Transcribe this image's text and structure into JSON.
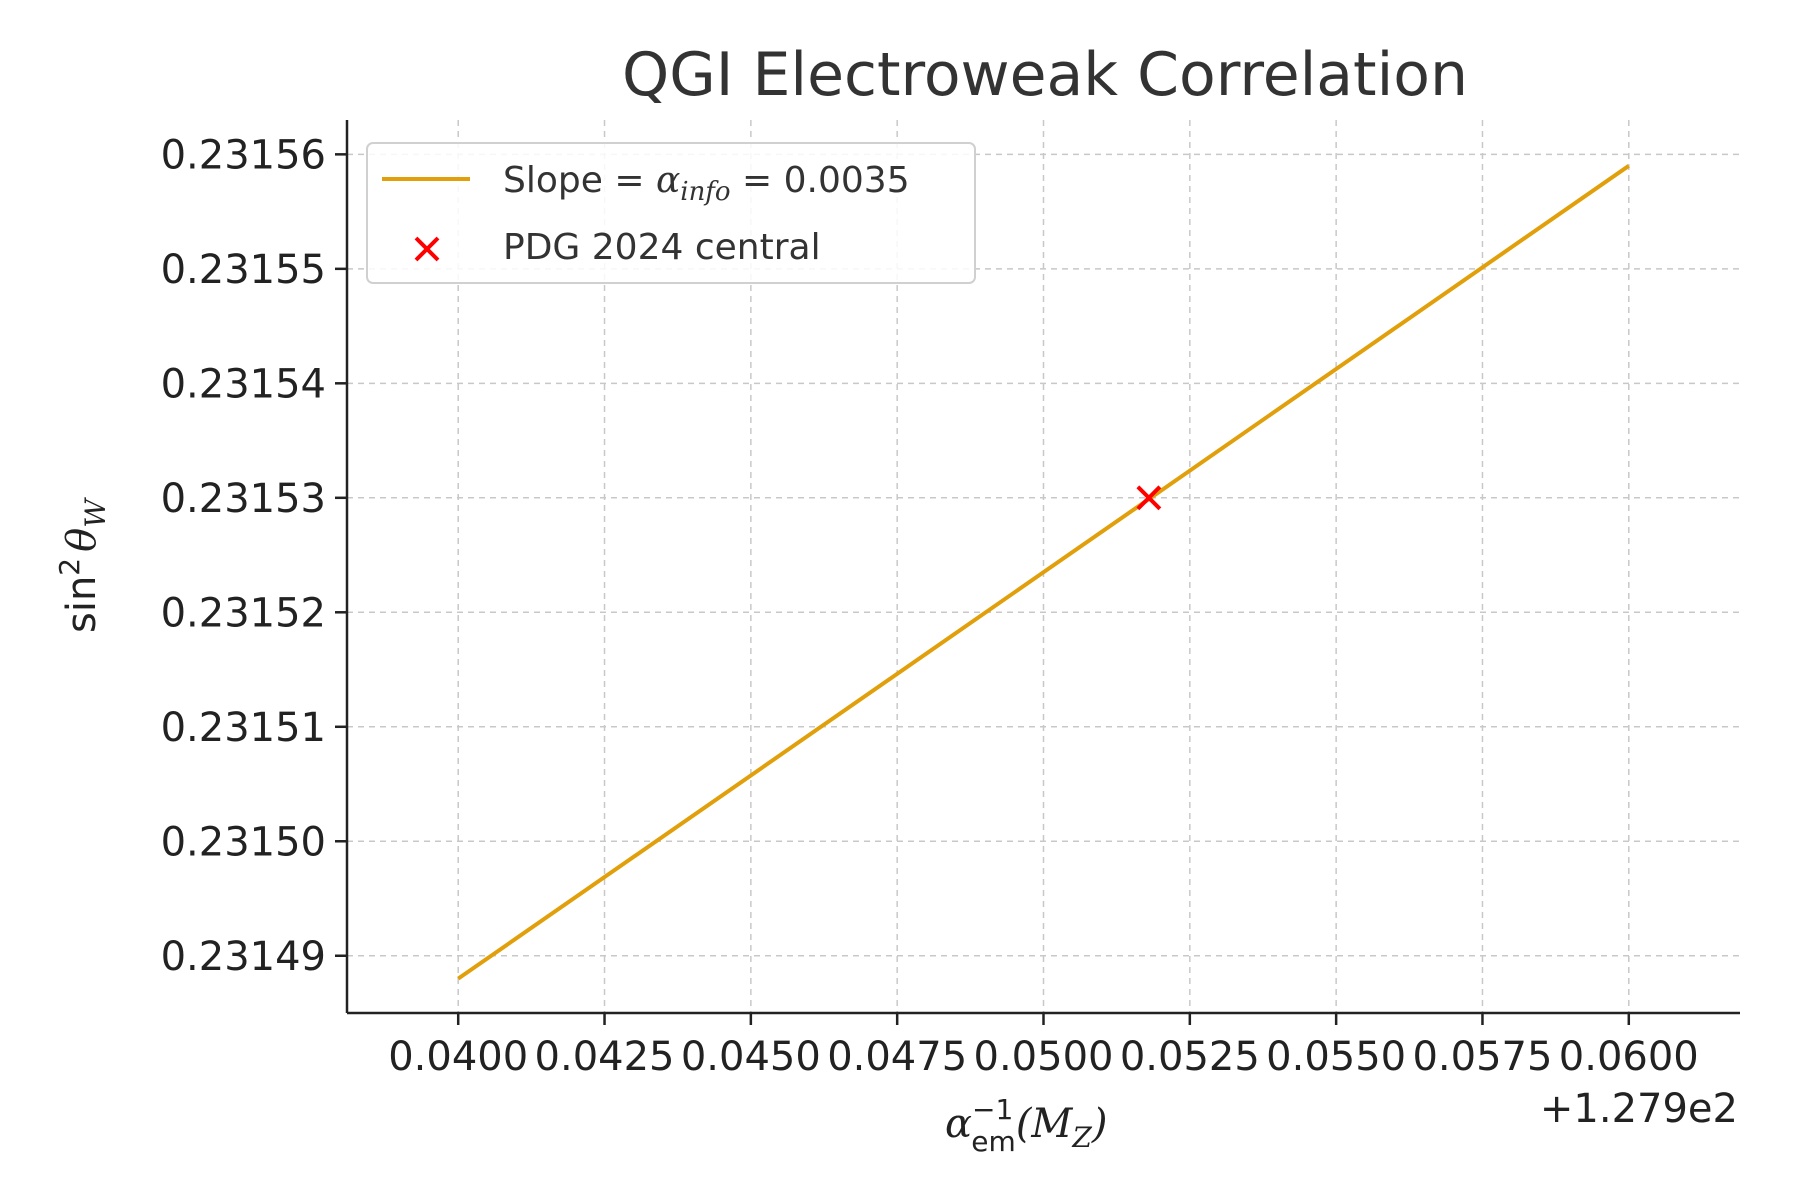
{
  "chart_data": {
    "type": "line",
    "title": "QGI Electroweak Correlation",
    "xlabel": "α_em^{-1}(M_Z)",
    "ylabel": "sin^2 θ_W",
    "x_offset_label": "+1.279e2",
    "xlim": [
      0.0381,
      0.0619
    ],
    "ylim": [
      0.231485,
      0.231563
    ],
    "x_ticks": [
      0.04,
      0.0425,
      0.045,
      0.0475,
      0.05,
      0.0525,
      0.055,
      0.0575,
      0.06
    ],
    "x_tick_labels": [
      "0.0400",
      "0.0425",
      "0.0450",
      "0.0475",
      "0.0500",
      "0.0525",
      "0.0550",
      "0.0575",
      "0.0600"
    ],
    "y_ticks": [
      0.23149,
      0.2315,
      0.23151,
      0.23152,
      0.23153,
      0.23154,
      0.23155,
      0.23156
    ],
    "y_tick_labels": [
      "0.23149",
      "0.23150",
      "0.23151",
      "0.23152",
      "0.23153",
      "0.23154",
      "0.23155",
      "0.23156"
    ],
    "grid": true,
    "legend_position": "top-left",
    "series": [
      {
        "name": "Slope = α_info = 0.0035",
        "kind": "line",
        "color": "#E1A00B",
        "x": [
          0.04,
          0.06
        ],
        "y": [
          0.231488,
          0.231559
        ]
      },
      {
        "name": "PDG 2024 central",
        "kind": "scatter",
        "marker": "x",
        "color": "#FF0000",
        "x": [
          0.0518
        ],
        "y": [
          0.23153
        ]
      }
    ]
  }
}
